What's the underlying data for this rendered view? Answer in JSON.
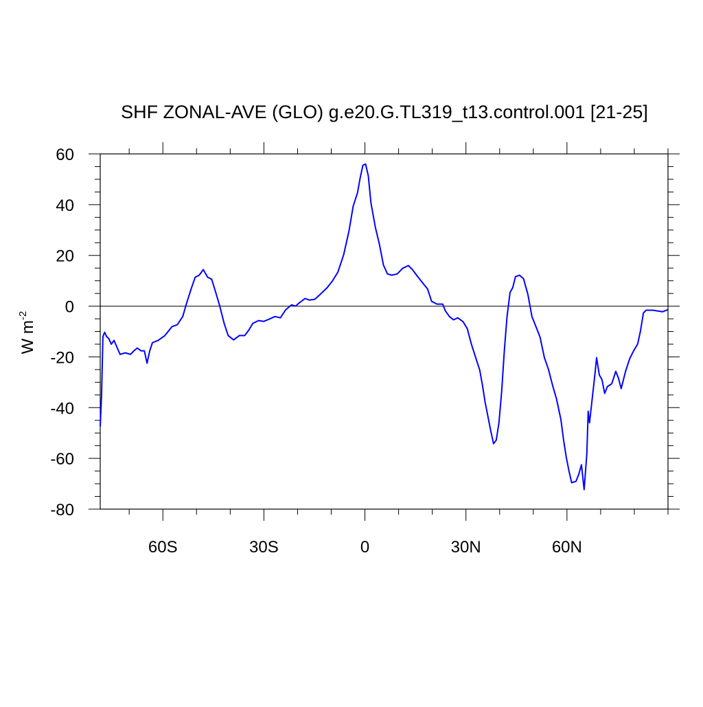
{
  "chart_data": {
    "type": "line",
    "title": "SHF ZONAL-AVE (GLO) g.e20.G.TL319_t13.control.001 [21-25]",
    "ylabel": "W m",
    "ylabel_superscript": "-2",
    "reference_line": 0,
    "xlim": [
      -78.6,
      90
    ],
    "ylim": [
      -80,
      60
    ],
    "xticks": [
      {
        "value": -60,
        "label": "60S"
      },
      {
        "value": -30,
        "label": "30S"
      },
      0,
      {
        "value": 30,
        "label": "30N"
      },
      {
        "value": 60,
        "label": "60N"
      }
    ],
    "xminorticks": [
      -70,
      -50,
      -40,
      -20,
      -10,
      10,
      20,
      40,
      50,
      70,
      80,
      90
    ],
    "yticks": [
      60,
      40,
      20,
      0,
      -20,
      -40,
      -60,
      -80
    ],
    "yminorticks": [
      55,
      50,
      45,
      35,
      30,
      25,
      15,
      10,
      5,
      -5,
      -10,
      -15,
      -25,
      -30,
      -35,
      -45,
      -50,
      -55,
      -65,
      -70,
      -75
    ],
    "series": [
      {
        "color": "#0000ff",
        "x": [
          -78.6,
          -78.2,
          -77.8,
          -77.3,
          -76.7,
          -76.1,
          -75.3,
          -74.5,
          -73.7,
          -72.7,
          -71.2,
          -69.6,
          -68.6,
          -67.6,
          -66.5,
          -65.5,
          -64.7,
          -63.9,
          -63.1,
          -61.4,
          -59.4,
          -57.3,
          -55.7,
          -54.1,
          -52.9,
          -51.6,
          -50.4,
          -49.2,
          -48,
          -46.7,
          -45.5,
          -44.3,
          -43.1,
          -41.8,
          -40.6,
          -39,
          -37.3,
          -35.7,
          -34.5,
          -33.3,
          -31.6,
          -30,
          -28.4,
          -26.7,
          -25.1,
          -23.5,
          -21.8,
          -20.6,
          -19.4,
          -17.8,
          -16.5,
          -14.9,
          -13.3,
          -11.2,
          -9.6,
          -8,
          -6.3,
          -4.7,
          -3.5,
          -2.2,
          -1.4,
          -0.6,
          0.2,
          1,
          1.8,
          3.1,
          4.3,
          5.5,
          6.7,
          8,
          9.6,
          11.2,
          12.9,
          14.1,
          15.7,
          17.3,
          18.6,
          19.8,
          21.4,
          23.1,
          23.9,
          25.1,
          26.3,
          27.6,
          29.2,
          30.4,
          31.6,
          32.9,
          34.1,
          34.9,
          35.7,
          36.5,
          37.3,
          38.2,
          39,
          39.8,
          40.6,
          41.4,
          42.2,
          43.1,
          43.9,
          44.7,
          45.9,
          47.1,
          48.4,
          49.6,
          50.8,
          52,
          53.3,
          54.5,
          55.7,
          56.9,
          58.2,
          59,
          59.8,
          60.6,
          61.4,
          62.7,
          63.5,
          64.3,
          65.1,
          65.9,
          66.3,
          66.7,
          67.6,
          68.4,
          68.8,
          69.6,
          70.4,
          71.2,
          72,
          73.3,
          74.5,
          75.3,
          76.1,
          77.4,
          78.6,
          79.8,
          81,
          81.8,
          82.7,
          83.5,
          85.5,
          88.4,
          90
        ],
        "values": [
          -47.4,
          -35,
          -12,
          -10.3,
          -12,
          -12.7,
          -15,
          -13.5,
          -16,
          -19,
          -18.4,
          -19,
          -17.6,
          -16.5,
          -17.6,
          -17.6,
          -22.5,
          -17.6,
          -14.4,
          -13.5,
          -11.6,
          -8.1,
          -7.3,
          -4.1,
          1.4,
          6.8,
          11.4,
          12.2,
          14.4,
          11.4,
          10.6,
          5.4,
          0,
          -6.8,
          -11.6,
          -13.3,
          -11.6,
          -11.6,
          -9.5,
          -6.8,
          -5.7,
          -6,
          -5.1,
          -4.1,
          -4.6,
          -1.4,
          0.5,
          0,
          1.4,
          3,
          2.4,
          2.7,
          4.6,
          7.3,
          10,
          13.5,
          20.3,
          29.8,
          39.3,
          44.7,
          50.6,
          55.5,
          56,
          51.4,
          40.6,
          31.1,
          24.4,
          16.2,
          12.7,
          12.2,
          12.7,
          14.9,
          16,
          14.4,
          11.6,
          8.9,
          6.8,
          1.9,
          0.8,
          0.8,
          -1.9,
          -4.1,
          -5.4,
          -4.6,
          -6.2,
          -8.9,
          -14.9,
          -20.3,
          -25.2,
          -31.1,
          -37.9,
          -43.3,
          -48.7,
          -54.2,
          -52.8,
          -46,
          -33.8,
          -17.6,
          -4.1,
          5.4,
          7.3,
          11.6,
          12.2,
          10.8,
          4.6,
          -4.1,
          -8.1,
          -12.2,
          -20.3,
          -24.9,
          -31.1,
          -36.6,
          -44.7,
          -52.8,
          -59.6,
          -65,
          -69.6,
          -69,
          -66.3,
          -62.5,
          -72.3,
          -58.2,
          -41.4,
          -46,
          -35.2,
          -25.7,
          -20.3,
          -27.1,
          -29,
          -34.4,
          -31.7,
          -30.6,
          -25.7,
          -28.4,
          -32.5,
          -25.7,
          -20.8,
          -17.6,
          -14.9,
          -10,
          -2.7,
          -1.6,
          -1.6,
          -2.2,
          -1.4
        ]
      }
    ]
  }
}
